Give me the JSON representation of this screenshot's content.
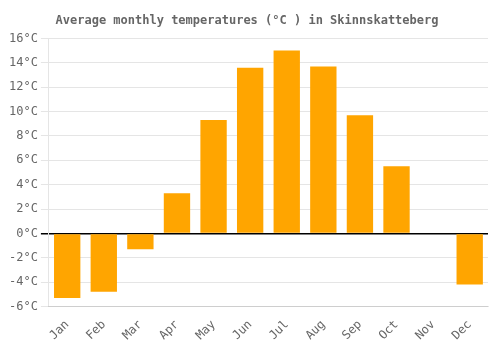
{
  "chart_data": {
    "type": "bar",
    "title": "Average monthly temperatures (°C ) in Skinnskatteberg",
    "categories": [
      "Jan",
      "Feb",
      "Mar",
      "Apr",
      "May",
      "Jun",
      "Jul",
      "Aug",
      "Sep",
      "Oct",
      "Nov",
      "Dec"
    ],
    "values": [
      -5.3,
      -4.8,
      -1.3,
      3.3,
      9.3,
      13.6,
      15.0,
      13.7,
      9.7,
      5.5,
      0.0,
      -4.2
    ],
    "color": "#FFA500",
    "ylim": [
      -6,
      16
    ],
    "yticks": [
      {
        "value": -6,
        "label": "-6°C"
      },
      {
        "value": -4,
        "label": "-4°C"
      },
      {
        "value": -2,
        "label": "-2°C"
      },
      {
        "value": 0,
        "label": "0°C"
      },
      {
        "value": 2,
        "label": "2°C"
      },
      {
        "value": 4,
        "label": "4°C"
      },
      {
        "value": 6,
        "label": "6°C"
      },
      {
        "value": 8,
        "label": "8°C"
      },
      {
        "value": 10,
        "label": "10°C"
      },
      {
        "value": 12,
        "label": "12°C"
      },
      {
        "value": 14,
        "label": "14°C"
      },
      {
        "value": 16,
        "label": "16°C"
      }
    ],
    "grid": true
  }
}
